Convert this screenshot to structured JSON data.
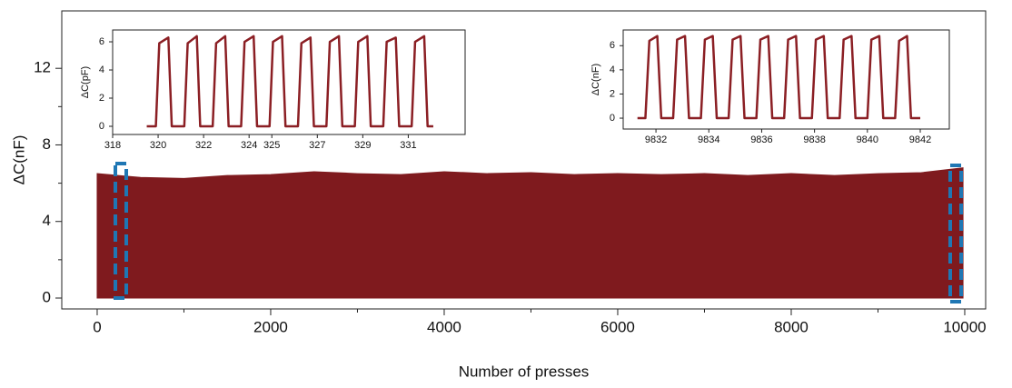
{
  "chart_data": [
    {
      "type": "area",
      "x_label": "Number of presses",
      "y_label": "ΔC(nF)",
      "color": "#7f1a1e",
      "x": [
        0,
        500,
        1000,
        1500,
        2000,
        2500,
        3000,
        3500,
        4000,
        4500,
        5000,
        5500,
        6000,
        6500,
        7000,
        7500,
        8000,
        8500,
        9000,
        9500,
        9980
      ],
      "values": [
        6.5,
        6.3,
        6.25,
        6.4,
        6.45,
        6.6,
        6.5,
        6.45,
        6.6,
        6.5,
        6.55,
        6.45,
        6.5,
        6.45,
        6.5,
        6.4,
        6.5,
        6.4,
        6.5,
        6.55,
        6.8
      ],
      "xlim": [
        -408,
        10241
      ],
      "xticks": [
        0,
        2000,
        4000,
        6000,
        8000,
        10000
      ],
      "ylim": [
        -0.57,
        15
      ],
      "yticks": [
        0,
        4,
        8,
        12
      ]
    },
    {
      "type": "line",
      "y_label": "ΔC(pF)",
      "color": "#8b1f24",
      "x": [
        319.5,
        319.9,
        320.05,
        320.45,
        320.6,
        321.15,
        321.3,
        321.7,
        321.85,
        322.4,
        322.55,
        322.95,
        323.1,
        323.65,
        323.8,
        324.2,
        324.35,
        324.9,
        325.05,
        325.45,
        325.6,
        326.15,
        326.3,
        326.7,
        326.85,
        327.4,
        327.55,
        327.95,
        328.1,
        328.65,
        328.8,
        329.2,
        329.35,
        329.9,
        330.05,
        330.45,
        330.6,
        331.15,
        331.3,
        331.7,
        331.85,
        332.1
      ],
      "values": [
        0,
        0,
        5.9,
        6.3,
        0,
        0,
        5.9,
        6.4,
        0,
        0,
        5.9,
        6.4,
        0,
        0,
        6.0,
        6.4,
        0,
        0,
        6.0,
        6.4,
        0,
        0,
        5.9,
        6.3,
        0,
        0,
        6.0,
        6.4,
        0,
        0,
        6.0,
        6.4,
        0,
        0,
        6.0,
        6.3,
        0,
        0,
        6.0,
        6.4,
        0,
        0
      ],
      "xlim": [
        318,
        333.5
      ],
      "xticks": [
        318,
        320,
        322,
        324,
        325,
        327,
        329,
        331
      ],
      "ylim": [
        -0.58,
        6.84
      ],
      "yticks": [
        0,
        2,
        4,
        6
      ]
    },
    {
      "type": "line",
      "y_label": "ΔC(nF)",
      "color": "#8b1f24",
      "x": [
        9831.3,
        9831.6,
        9831.75,
        9832.05,
        9832.2,
        9832.65,
        9832.8,
        9833.1,
        9833.25,
        9833.7,
        9833.85,
        9834.15,
        9834.3,
        9834.75,
        9834.9,
        9835.2,
        9835.35,
        9835.8,
        9835.95,
        9836.25,
        9836.4,
        9836.85,
        9837.0,
        9837.3,
        9837.45,
        9837.9,
        9838.05,
        9838.35,
        9838.5,
        9838.95,
        9839.1,
        9839.4,
        9839.55,
        9840.0,
        9840.15,
        9840.45,
        9840.6,
        9841.05,
        9841.2,
        9841.5,
        9841.65,
        9842.0
      ],
      "values": [
        0,
        0,
        6.4,
        6.8,
        0,
        0,
        6.5,
        6.8,
        0,
        0,
        6.5,
        6.8,
        0,
        0,
        6.5,
        6.8,
        0,
        0,
        6.5,
        6.8,
        0,
        0,
        6.5,
        6.8,
        0,
        0,
        6.5,
        6.8,
        0,
        0,
        6.5,
        6.8,
        0,
        0,
        6.5,
        6.8,
        0,
        0,
        6.4,
        6.8,
        0,
        0
      ],
      "xlim": [
        9830.76,
        9843.1
      ],
      "xticks": [
        9832,
        9834,
        9836,
        9838,
        9840,
        9842
      ],
      "ylim": [
        -0.9,
        7.3
      ],
      "yticks": [
        0,
        2,
        4,
        6
      ]
    }
  ]
}
